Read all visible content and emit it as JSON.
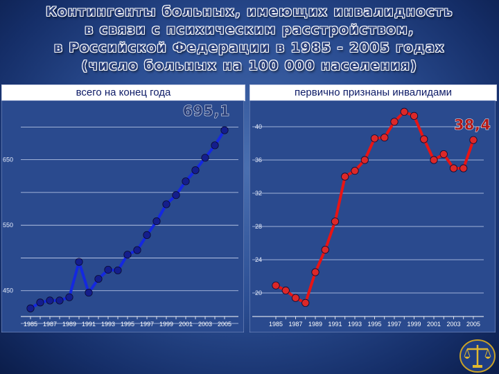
{
  "title": {
    "lines": [
      "Контингенты больных, имеющих инвалидность",
      "в связи с психическим расстройством,",
      "в Российской Федерации в 1985 - 2005 годах",
      "(число больных на 100 000 населения)"
    ]
  },
  "colors": {
    "left_series": "#1428e0",
    "left_marker": "#141e8c",
    "right_series": "#e81414",
    "right_marker": "#dc2828",
    "panel_bg": "#2a4a8e",
    "grid": "#c8d4f0"
  },
  "chart_data": [
    {
      "type": "line",
      "title": "всего на конец года",
      "annotation": "695,1",
      "x": [
        1985,
        1986,
        1987,
        1988,
        1989,
        1990,
        1991,
        1992,
        1993,
        1994,
        1995,
        1996,
        1997,
        1998,
        1999,
        2000,
        2001,
        2002,
        2003,
        2004,
        2005
      ],
      "series": [
        {
          "values": [
            423,
            432,
            435,
            435,
            440,
            494,
            447,
            468,
            482,
            481,
            505,
            512,
            535,
            556,
            582,
            596,
            617,
            634,
            653,
            672,
            695.1
          ]
        }
      ],
      "ylim": [
        400,
        730
      ],
      "yticks": [
        450,
        550,
        650
      ],
      "yticks_labeled": [
        {
          "v": 450,
          "label": "450"
        },
        {
          "v": 550,
          "label": "550"
        },
        {
          "v": 650,
          "label": "650"
        }
      ],
      "ygrid": [
        400,
        450,
        500,
        550,
        600,
        650,
        700
      ],
      "xticks_labeled": [
        {
          "v": 1985,
          "label": "1985"
        },
        {
          "v": 1987,
          "label": "1987"
        },
        {
          "v": 1989,
          "label": "1989"
        },
        {
          "v": 1991,
          "label": "1991"
        },
        {
          "v": 1993,
          "label": "1993"
        },
        {
          "v": 1995,
          "label": "1995"
        },
        {
          "v": 1997,
          "label": "1997"
        },
        {
          "v": 1999,
          "label": "1999"
        },
        {
          "v": 2001,
          "label": "2001"
        },
        {
          "v": 2003,
          "label": "2003"
        },
        {
          "v": 2005,
          "label": "2005"
        }
      ],
      "grid": true
    },
    {
      "type": "line",
      "title": "первично признаны инвалидами",
      "annotation": "38,4",
      "x": [
        1985,
        1986,
        1987,
        1988,
        1989,
        1990,
        1991,
        1992,
        1993,
        1994,
        1995,
        1996,
        1997,
        1998,
        1999,
        2000,
        2001,
        2002,
        2003,
        2004,
        2005
      ],
      "series": [
        {
          "values": [
            20.9,
            20.3,
            19.4,
            18.8,
            22.5,
            25.2,
            28.6,
            34.0,
            34.7,
            36.0,
            38.6,
            38.7,
            40.6,
            41.8,
            41.3,
            38.5,
            36.0,
            36.7,
            35.0,
            35.0,
            38.4
          ]
        }
      ],
      "ylim": [
        18,
        43
      ],
      "yticks": [
        20,
        24,
        28,
        32,
        36,
        40
      ],
      "yticks_labeled": [
        {
          "v": 20,
          "label": "20"
        },
        {
          "v": 24,
          "label": "24"
        },
        {
          "v": 28,
          "label": "28"
        },
        {
          "v": 32,
          "label": "32"
        },
        {
          "v": 36,
          "label": "36"
        },
        {
          "v": 40,
          "label": "40"
        }
      ],
      "ygrid": [
        20,
        24,
        28,
        32,
        36,
        40
      ],
      "xticks_labeled": [
        {
          "v": 1985,
          "label": "1985"
        },
        {
          "v": 1987,
          "label": "1987"
        },
        {
          "v": 1989,
          "label": "1989"
        },
        {
          "v": 1991,
          "label": "1991"
        },
        {
          "v": 1993,
          "label": "1993"
        },
        {
          "v": 1995,
          "label": "1995"
        },
        {
          "v": 1997,
          "label": "1997"
        },
        {
          "v": 1999,
          "label": "1999"
        },
        {
          "v": 2001,
          "label": "2001"
        },
        {
          "v": 2003,
          "label": "2003"
        },
        {
          "v": 2005,
          "label": "2005"
        }
      ],
      "grid": true
    }
  ],
  "logo": {
    "icon": "scales-of-justice-icon"
  }
}
